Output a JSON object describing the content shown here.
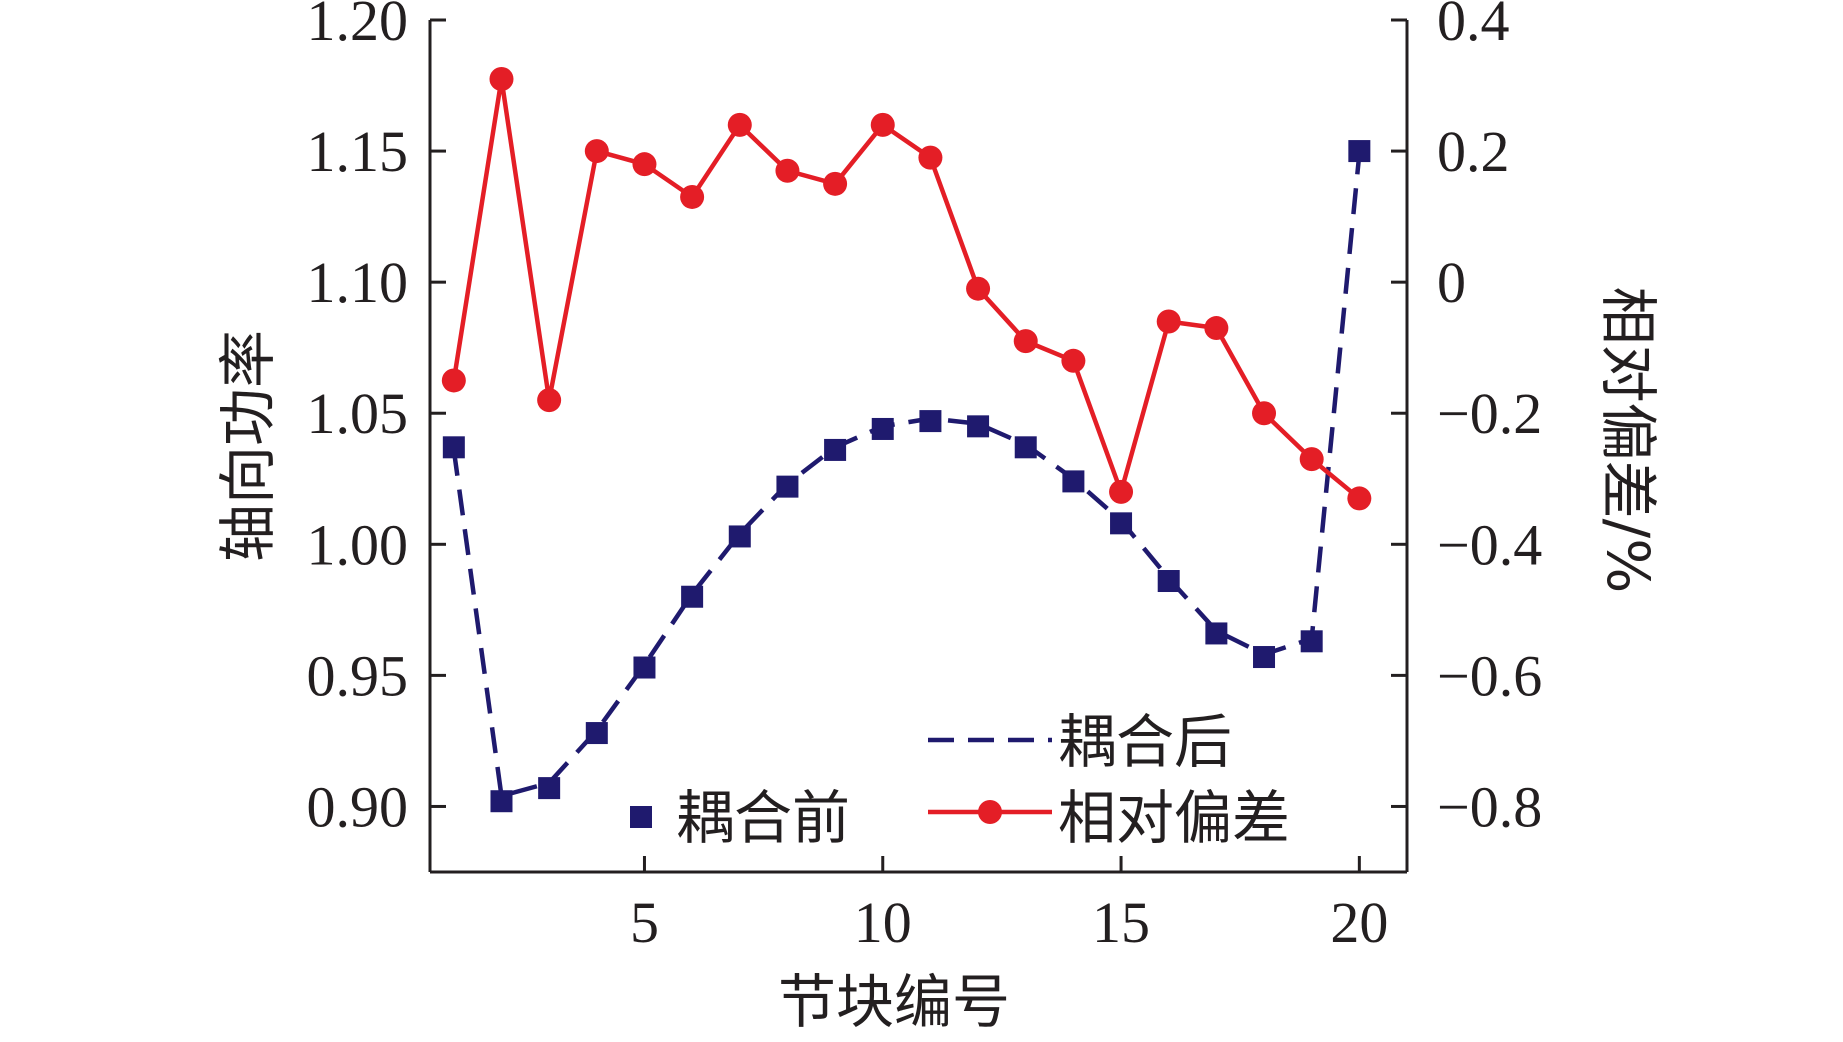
{
  "chart_data": {
    "type": "line",
    "xlabel": "节块编号",
    "ylabel_left": "轴向功率",
    "ylabel_right": "相对偏差/%",
    "x_ticks": [
      "5",
      "10",
      "15",
      "20"
    ],
    "y_left_ticks": [
      "0.90",
      "0.95",
      "1.00",
      "1.05",
      "1.10",
      "1.15",
      "1.20"
    ],
    "y_right_ticks": [
      "−0.8",
      "−0.6",
      "−0.4",
      "−0.2",
      "0",
      "0.2",
      "0.4"
    ],
    "xlim": [
      0.5,
      21
    ],
    "ylim_left": [
      0.875,
      1.2
    ],
    "ylim_right": [
      -0.9,
      0.4
    ],
    "x": [
      1,
      2,
      3,
      4,
      5,
      6,
      7,
      8,
      9,
      10,
      11,
      12,
      13,
      14,
      15,
      16,
      17,
      18,
      19,
      20
    ],
    "series": [
      {
        "name": "耦合前",
        "style": "square-marker",
        "axis": "left",
        "color": "#1f1a6e",
        "values": [
          1.037,
          0.902,
          0.907,
          0.928,
          0.953,
          0.98,
          1.003,
          1.022,
          1.036,
          1.044,
          1.047,
          1.045,
          1.037,
          1.024,
          1.008,
          0.986,
          0.966,
          0.957,
          0.963,
          1.15
        ]
      },
      {
        "name": "耦合后",
        "style": "dashed-line",
        "axis": "left",
        "color": "#1f1a6e",
        "values": [
          1.036,
          0.904,
          0.909,
          0.929,
          0.954,
          0.981,
          1.004,
          1.023,
          1.037,
          1.045,
          1.048,
          1.046,
          1.038,
          1.025,
          1.009,
          0.987,
          0.967,
          0.958,
          0.964,
          1.149
        ]
      },
      {
        "name": "相对偏差",
        "style": "line-circle",
        "axis": "right",
        "color": "#e41e26",
        "values": [
          -0.15,
          0.31,
          -0.18,
          0.2,
          0.18,
          0.13,
          0.24,
          0.17,
          0.15,
          0.24,
          0.19,
          -0.01,
          -0.09,
          -0.12,
          -0.32,
          -0.06,
          -0.07,
          -0.2,
          -0.27,
          -0.33
        ]
      }
    ],
    "legend": [
      {
        "label": "耦合后",
        "symbol": "dashed-line"
      },
      {
        "label": "耦合前",
        "symbol": "square-marker"
      },
      {
        "label": "相对偏差",
        "symbol": "line-circle"
      }
    ],
    "grid": false
  }
}
